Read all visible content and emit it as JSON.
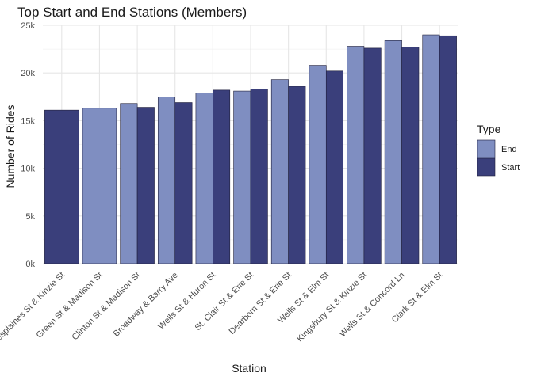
{
  "chart_data": {
    "type": "bar",
    "title": "Top Start and End Stations (Members)",
    "xlabel": "Station",
    "ylabel": "Number of Rides",
    "ylim": [
      0,
      25000
    ],
    "yticks": [
      0,
      5000,
      10000,
      15000,
      20000,
      25000
    ],
    "ytick_labels": [
      "0k",
      "5k",
      "10k",
      "15k",
      "20k",
      "25k"
    ],
    "grid": true,
    "legend": {
      "title": "Type",
      "position": "right"
    },
    "categories": [
      "Desplaines St & Kinzie St",
      "Green St & Madison St",
      "Clinton St & Madison St",
      "Broadway & Barry Ave",
      "Wells St & Huron St",
      "St. Clair St & Erie St",
      "Dearborn St & Erie St",
      "Wells St & Elm St",
      "Kingsbury St & Kinzie St",
      "Wells St & Concord Ln",
      "Clark St & Elm St"
    ],
    "series": [
      {
        "name": "End",
        "color": "#7f8ec1",
        "values": [
          null,
          16300,
          16800,
          17500,
          17900,
          18100,
          19300,
          20800,
          22800,
          23400,
          24000
        ]
      },
      {
        "name": "Start",
        "color": "#3a3f7b",
        "values": [
          16100,
          null,
          16400,
          16900,
          18200,
          18300,
          18600,
          20200,
          22600,
          22700,
          23900
        ]
      }
    ]
  }
}
